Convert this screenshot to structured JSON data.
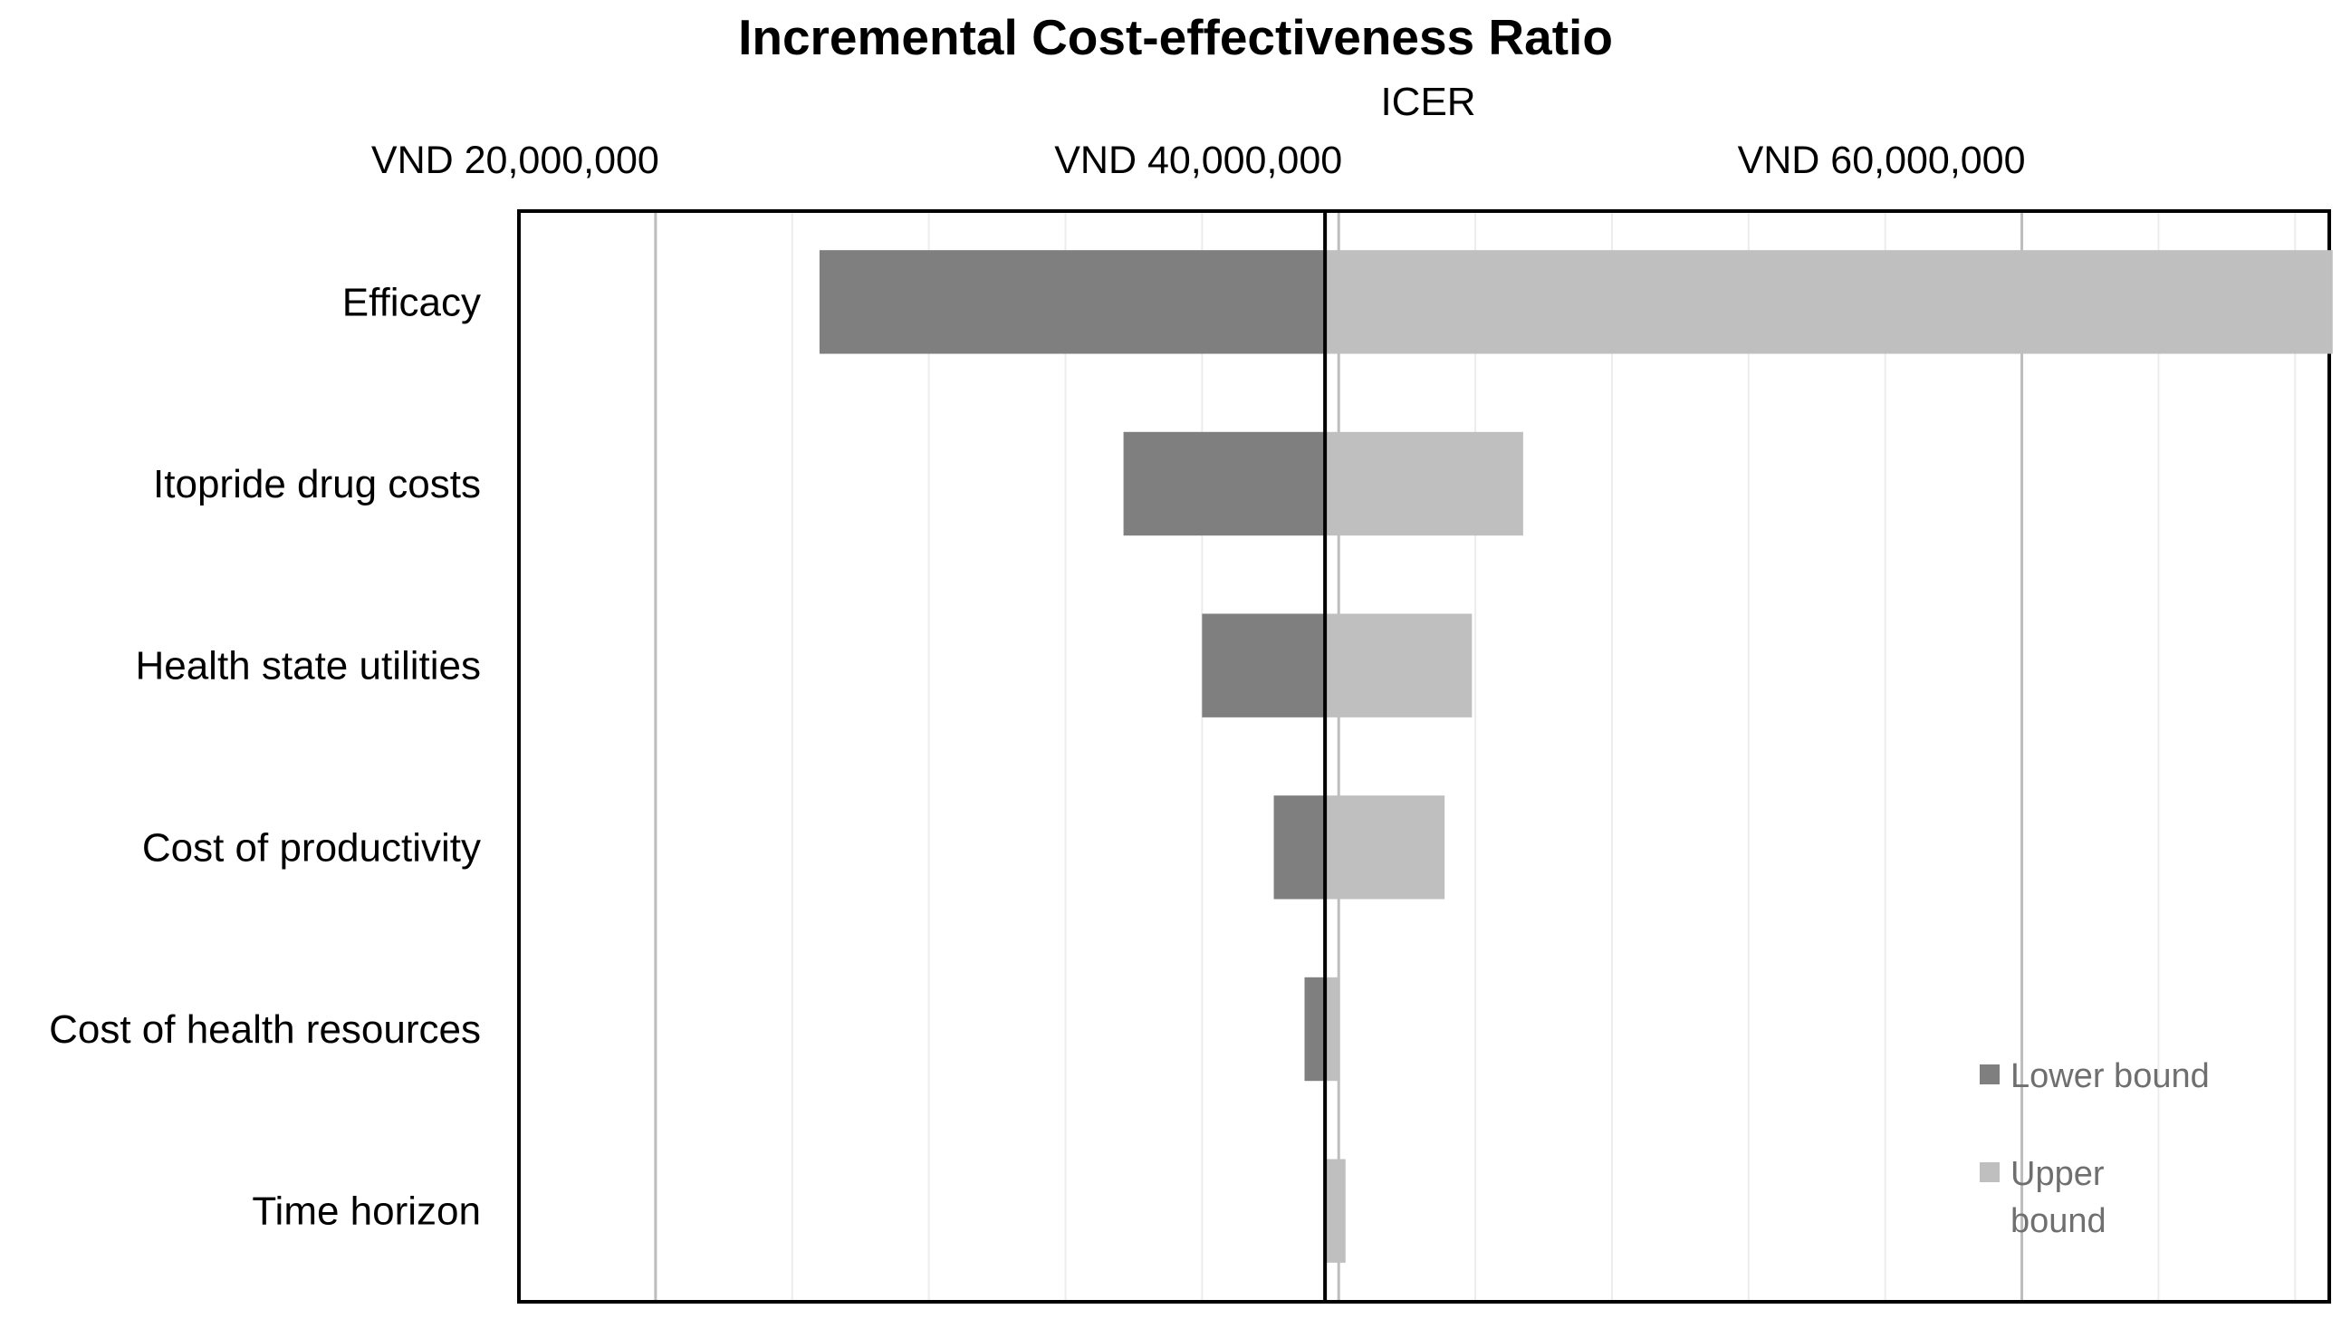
{
  "chart_data": {
    "type": "bar",
    "orientation": "horizontal",
    "subtype": "tornado",
    "title": "Incremental Cost-effectiveness Ratio",
    "xlabel": "ICER",
    "ylabel": "",
    "xlim": [
      16000000,
      69000000
    ],
    "base_value": 39600000,
    "x_ticks": [
      {
        "value": 20000000,
        "label": "VND 20,000,000"
      },
      {
        "value": 40000000,
        "label": "VND 40,000,000"
      },
      {
        "value": 60000000,
        "label": "VND 60,000,000"
      }
    ],
    "minor_gridlines": [
      20000000,
      24000000,
      28000000,
      32000000,
      36000000,
      40000000,
      44000000,
      48000000,
      52000000,
      56000000,
      60000000,
      64000000,
      68000000
    ],
    "categories": [
      "Efficacy",
      "Itopride drug costs",
      "Health state utilities",
      "Cost of productivity",
      "Cost of health resources",
      "Time horizon"
    ],
    "series": [
      {
        "name": "Lower bound",
        "color": "#7f7f7f",
        "values": [
          24800000,
          33700000,
          36000000,
          38100000,
          39000000,
          39600000
        ]
      },
      {
        "name": "Upper bound",
        "color": "#bfbfbf",
        "values": [
          69100000,
          45400000,
          43900000,
          43100000,
          40000000,
          40200000
        ]
      }
    ],
    "legend": {
      "position": "bottom-right",
      "items": [
        "Lower bound",
        "Upper bound"
      ]
    }
  }
}
